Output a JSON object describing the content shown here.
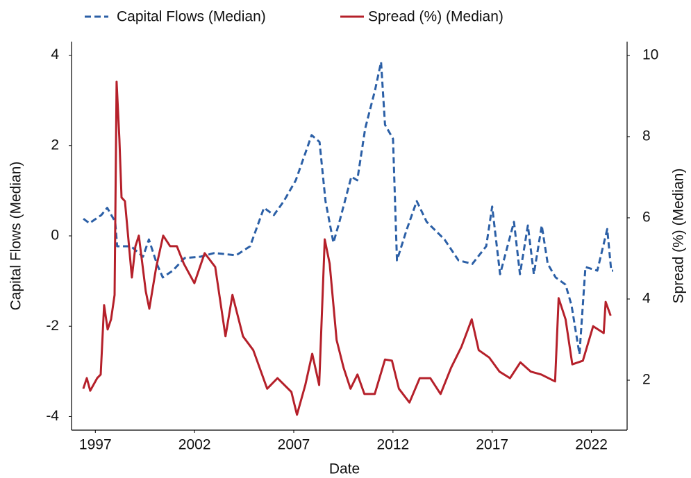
{
  "chart_data": {
    "type": "line",
    "x_label": "Date",
    "y_label": "Capital Flows (Median)",
    "y2_label": "Spread (%) (Median)",
    "xlim": [
      1995.8,
      2023.8
    ],
    "xticks": [
      1997,
      2002,
      2007,
      2012,
      2017,
      2022
    ],
    "ylim": [
      -4.3,
      4.3
    ],
    "yticks": [
      -4,
      -2,
      0,
      2,
      4
    ],
    "y2lim": [
      0.77,
      10.34
    ],
    "y2ticks": [
      2,
      4,
      6,
      8,
      10
    ],
    "legend": "top",
    "series": [
      {
        "name": "Capital Flows (Median)",
        "color": "#2b5fa6",
        "line_style": "dashed",
        "x": [
          1996.4,
          1996.7,
          1997.3,
          1997.6,
          1998.0,
          1998.1,
          1998.8,
          1999.4,
          1999.7,
          2000.1,
          2000.4,
          2000.9,
          2001.5,
          2002.3,
          2003.0,
          2004.1,
          2004.8,
          2005.5,
          2006.0,
          2006.5,
          2007.1,
          2007.6,
          2007.9,
          2008.3,
          2008.6,
          2009.0,
          2009.3,
          2009.9,
          2010.2,
          2010.6,
          2011.1,
          2011.4,
          2011.6,
          2012.0,
          2012.2,
          2012.7,
          2013.2,
          2013.7,
          2014.6,
          2015.3,
          2016.0,
          2016.7,
          2017.0,
          2017.4,
          2018.1,
          2018.4,
          2018.8,
          2019.1,
          2019.5,
          2019.8,
          2020.2,
          2020.7,
          2021.0,
          2021.4,
          2021.7,
          2022.3,
          2022.8,
          2023.0,
          2023.1
        ],
        "values": [
          0.38,
          0.28,
          0.46,
          0.62,
          0.31,
          -0.23,
          -0.23,
          -0.46,
          -0.08,
          -0.62,
          -0.92,
          -0.77,
          -0.49,
          -0.46,
          -0.38,
          -0.43,
          -0.23,
          0.62,
          0.46,
          0.77,
          1.23,
          1.85,
          2.23,
          2.08,
          0.77,
          -0.15,
          0.31,
          1.31,
          1.23,
          2.38,
          3.23,
          3.85,
          2.46,
          2.15,
          -0.54,
          0.15,
          0.77,
          0.31,
          -0.08,
          -0.54,
          -0.62,
          -0.23,
          0.65,
          -0.85,
          0.31,
          -0.85,
          0.23,
          -0.85,
          0.23,
          -0.62,
          -0.92,
          -1.08,
          -1.54,
          -2.62,
          -0.69,
          -0.77,
          0.15,
          -0.77,
          -0.77
        ]
      },
      {
        "name": "Spread (%) (Median)",
        "color": "#b5202a",
        "line_style": "solid",
        "axis": "y2",
        "x": [
          1996.39,
          1996.57,
          1996.74,
          1997.09,
          1997.27,
          1997.44,
          1997.62,
          1997.79,
          1997.97,
          1998.07,
          1998.21,
          1998.32,
          1998.49,
          1998.84,
          1999.02,
          1999.19,
          1999.54,
          1999.72,
          2000.07,
          2000.42,
          2000.77,
          2001.11,
          2001.46,
          2001.99,
          2002.51,
          2003.04,
          2003.56,
          2003.91,
          2004.44,
          2004.96,
          2005.66,
          2006.18,
          2006.88,
          2007.16,
          2007.58,
          2007.93,
          2008.28,
          2008.56,
          2008.81,
          2009.16,
          2009.51,
          2009.86,
          2010.21,
          2010.56,
          2011.08,
          2011.6,
          2011.95,
          2012.3,
          2012.83,
          2013.35,
          2013.88,
          2014.4,
          2014.93,
          2015.45,
          2015.97,
          2016.32,
          2016.85,
          2017.37,
          2017.9,
          2018.42,
          2018.95,
          2019.47,
          2020.17,
          2020.35,
          2020.7,
          2021.04,
          2021.57,
          2022.09,
          2022.62,
          2022.72,
          2022.97
        ],
        "values": [
          1.79,
          2.05,
          1.74,
          2.05,
          2.14,
          3.85,
          3.25,
          3.5,
          4.1,
          9.35,
          7.95,
          6.5,
          6.41,
          4.53,
          5.3,
          5.56,
          4.19,
          3.76,
          4.79,
          5.56,
          5.3,
          5.3,
          4.87,
          4.39,
          5.13,
          4.79,
          3.08,
          4.1,
          3.08,
          2.74,
          1.79,
          2.05,
          1.71,
          1.15,
          1.88,
          2.65,
          1.88,
          5.47,
          4.87,
          2.99,
          2.31,
          1.79,
          2.14,
          1.66,
          1.66,
          2.51,
          2.48,
          1.79,
          1.45,
          2.05,
          2.05,
          1.66,
          2.31,
          2.82,
          3.5,
          2.74,
          2.56,
          2.21,
          2.05,
          2.44,
          2.21,
          2.14,
          1.97,
          4.02,
          3.5,
          2.39,
          2.48,
          3.33,
          3.16,
          3.93,
          3.59
        ]
      }
    ]
  }
}
